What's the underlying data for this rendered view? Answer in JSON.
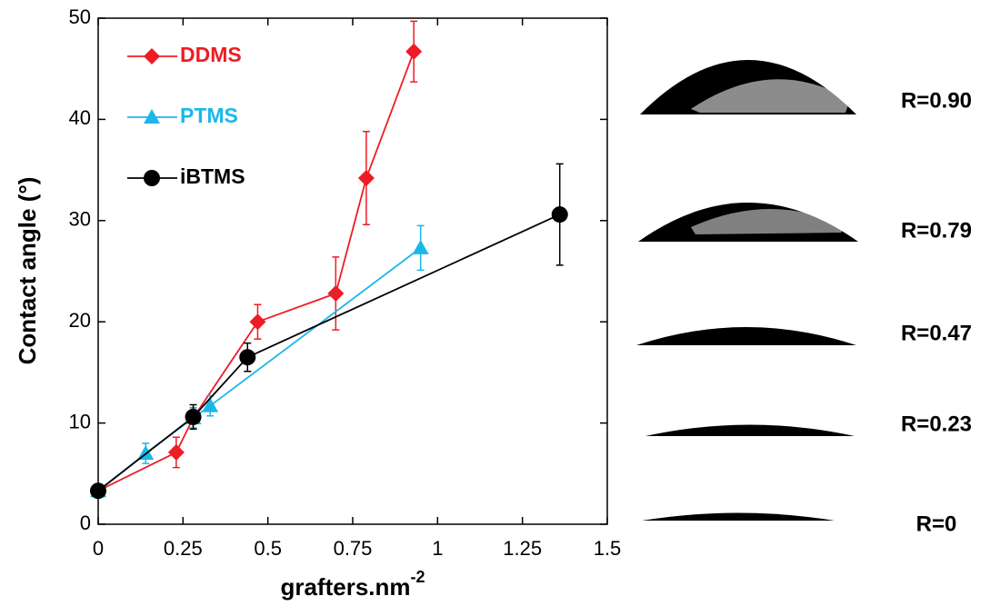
{
  "chart_data": {
    "type": "line",
    "xlabel": {
      "text": "grafters.nm",
      "sup": "-2"
    },
    "ylabel": "Contact angle (°)",
    "xlim": [
      0,
      1.5
    ],
    "xticks": [
      0,
      0.25,
      0.5,
      0.75,
      1,
      1.25,
      1.5
    ],
    "ylim": [
      0,
      50
    ],
    "yticks": [
      0,
      10,
      20,
      30,
      40,
      50
    ],
    "series": [
      {
        "name": "DDMS",
        "color": "#ee1c25",
        "marker": "diamond",
        "x": [
          0,
          0.23,
          0.28,
          0.47,
          0.7,
          0.79,
          0.93
        ],
        "values": [
          3.3,
          7.1,
          10.5,
          20.0,
          22.8,
          34.2,
          46.7
        ],
        "errors": [
          null,
          1.5,
          1.0,
          1.7,
          3.6,
          4.6,
          3.0
        ]
      },
      {
        "name": "PTMS",
        "color": "#1bb7e8",
        "marker": "triangle",
        "x": [
          0,
          0.14,
          0.28,
          0.33,
          0.95
        ],
        "values": [
          3.3,
          7.0,
          10.5,
          11.7,
          27.3
        ],
        "errors": [
          null,
          1.0,
          1.0,
          1.0,
          2.2
        ]
      },
      {
        "name": "iBTMS",
        "color": "#000000",
        "marker": "circle",
        "x": [
          0,
          0.28,
          0.44,
          1.36
        ],
        "values": [
          3.3,
          10.6,
          16.5,
          30.6
        ],
        "errors": [
          null,
          1.2,
          1.4,
          5.0
        ]
      }
    ]
  },
  "droplet_labels": [
    "R=0.90",
    "R=0.79",
    "R=0.47",
    "R=0.23",
    "R=0"
  ]
}
